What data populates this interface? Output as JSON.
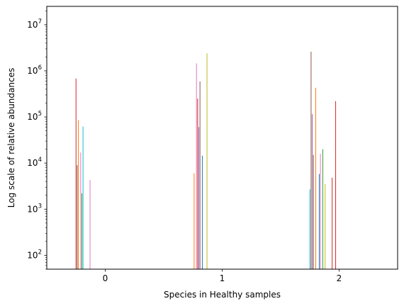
{
  "chart_data": {
    "type": "bar",
    "xlabel": "Species in Healthy samples",
    "ylabel": "Log scale of relative abundances",
    "yscale": "log",
    "ylim": [
      50,
      25000000
    ],
    "xlim": [
      -0.5,
      2.5
    ],
    "x_ticks": [
      0,
      1,
      2
    ],
    "x_tick_labels": [
      "0",
      "1",
      "2"
    ],
    "y_ticks": [
      {
        "value": 100,
        "base": "10",
        "exp": "2"
      },
      {
        "value": 1000,
        "base": "10",
        "exp": "3"
      },
      {
        "value": 10000,
        "base": "10",
        "exp": "4"
      },
      {
        "value": 100000,
        "base": "10",
        "exp": "5"
      },
      {
        "value": 1000000,
        "base": "10",
        "exp": "6"
      },
      {
        "value": 10000000,
        "base": "10",
        "exp": "7"
      }
    ],
    "grid": false,
    "legend": "none",
    "series": [
      {
        "color": "#d62728",
        "values": [
          {
            "x": -0.25,
            "y": 680000
          },
          {
            "x": 0.79,
            "y": 250000
          },
          {
            "x": 1.97,
            "y": 220000
          },
          {
            "x": 1.94,
            "y": 4800
          }
        ]
      },
      {
        "color": "#8c564b",
        "values": [
          {
            "x": -0.24,
            "y": 9000
          },
          {
            "x": 0.81,
            "y": 590000
          },
          {
            "x": 1.78,
            "y": 15000
          },
          {
            "x": 1.76,
            "y": 2600000
          }
        ]
      },
      {
        "color": "#ff7f0e",
        "values": [
          {
            "x": -0.23,
            "y": 85000
          },
          {
            "x": 0.76,
            "y": 6000
          },
          {
            "x": 1.8,
            "y": 430000
          }
        ]
      },
      {
        "color": "#e377c2",
        "values": [
          {
            "x": -0.21,
            "y": 17000
          },
          {
            "x": 0.78,
            "y": 1450000
          },
          {
            "x": -0.13,
            "y": 4300
          },
          {
            "x": 1.84,
            "y": 16000
          }
        ]
      },
      {
        "color": "#2ca02c",
        "values": [
          {
            "x": -0.2,
            "y": 2200
          },
          {
            "x": 1.86,
            "y": 20000
          }
        ]
      },
      {
        "color": "#17becf",
        "values": [
          {
            "x": -0.19,
            "y": 62000
          },
          {
            "x": 1.75,
            "y": 2700
          }
        ]
      },
      {
        "color": "#1f77b4",
        "values": [
          {
            "x": 0.83,
            "y": 14500
          },
          {
            "x": 1.83,
            "y": 5800
          }
        ]
      },
      {
        "color": "#bcbd22",
        "values": [
          {
            "x": 0.87,
            "y": 2400000
          },
          {
            "x": 1.88,
            "y": 3500
          }
        ]
      },
      {
        "color": "#9467bd",
        "values": [
          {
            "x": 0.8,
            "y": 60000
          },
          {
            "x": 1.77,
            "y": 115000
          }
        ]
      }
    ]
  }
}
